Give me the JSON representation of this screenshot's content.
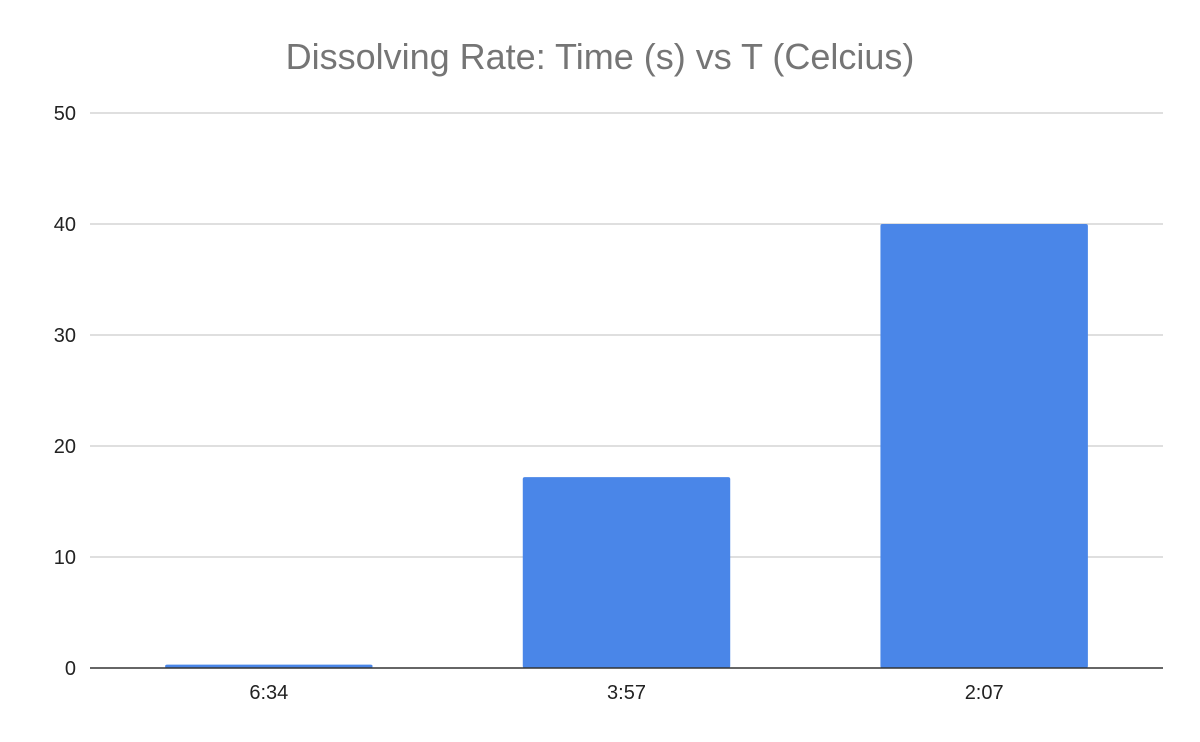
{
  "chart_data": {
    "type": "bar",
    "title": "Dissolving Rate: Time (s) vs T (Celcius)",
    "xlabel": "",
    "ylabel": "",
    "categories": [
      "6:34",
      "3:57",
      "2:07"
    ],
    "values": [
      0.3,
      17.2,
      40
    ],
    "ylim": [
      0,
      50
    ],
    "yticks": [
      0,
      10,
      20,
      30,
      40,
      50
    ],
    "grid": true,
    "legend": "none",
    "bar_color": "#4a86e8"
  }
}
